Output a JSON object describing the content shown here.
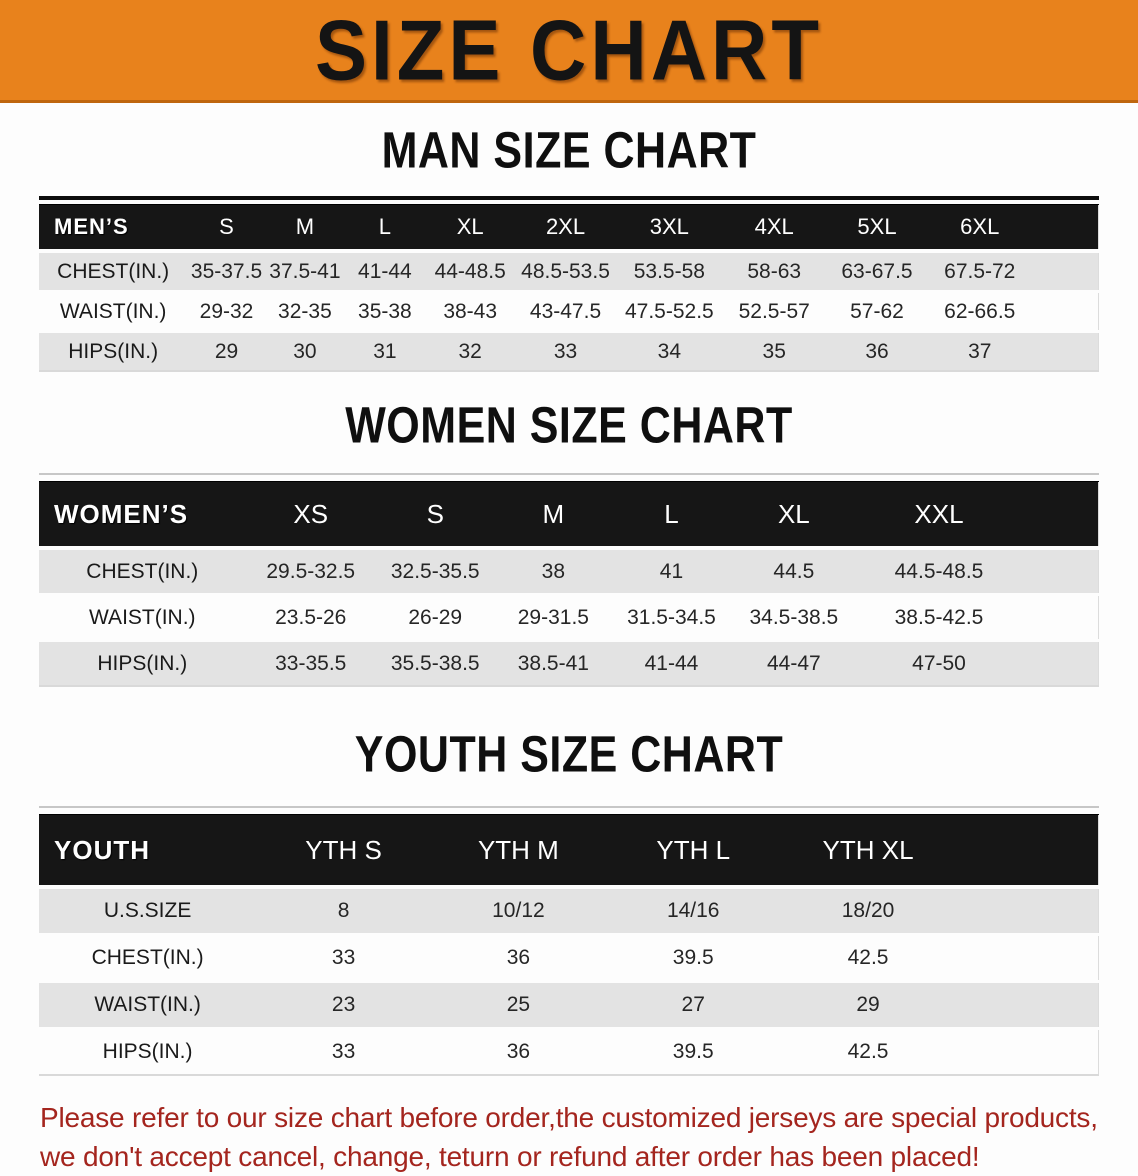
{
  "banner": {
    "title": "SIZE CHART",
    "background_color": "#E8821C"
  },
  "sections": [
    {
      "title": "MAN SIZE CHART",
      "header_label": "MEN’S",
      "columns": [
        "S",
        "M",
        "L",
        "XL",
        "2XL",
        "3XL",
        "4XL",
        "5XL",
        "6XL"
      ],
      "rows": [
        {
          "label": "CHEST(IN.)",
          "values": [
            "35-37.5",
            "37.5-41",
            "41-44",
            "44-48.5",
            "48.5-53.5",
            "53.5-58",
            "58-63",
            "63-67.5",
            "67.5-72"
          ]
        },
        {
          "label": "WAIST(IN.)",
          "values": [
            "29-32",
            "32-35",
            "35-38",
            "38-43",
            "43-47.5",
            "47.5-52.5",
            "52.5-57",
            "57-62",
            "62-66.5"
          ]
        },
        {
          "label": "HIPS(IN.)",
          "values": [
            "29",
            "30",
            "31",
            "32",
            "33",
            "34",
            "35",
            "36",
            "37"
          ]
        }
      ]
    },
    {
      "title": "WOMEN SIZE CHART",
      "header_label": "WOMEN’S",
      "columns": [
        "XS",
        "S",
        "M",
        "L",
        "XL",
        "XXL"
      ],
      "rows": [
        {
          "label": "CHEST(IN.)",
          "values": [
            "29.5-32.5",
            "32.5-35.5",
            "38",
            "41",
            "44.5",
            "44.5-48.5"
          ]
        },
        {
          "label": "WAIST(IN.)",
          "values": [
            "23.5-26",
            "26-29",
            "29-31.5",
            "31.5-34.5",
            "34.5-38.5",
            "38.5-42.5"
          ]
        },
        {
          "label": "HIPS(IN.)",
          "values": [
            "33-35.5",
            "35.5-38.5",
            "38.5-41",
            "41-44",
            "44-47",
            "47-50"
          ]
        }
      ]
    },
    {
      "title": "YOUTH SIZE CHART",
      "header_label": "YOUTH",
      "columns": [
        "YTH S",
        "YTH M",
        "YTH L",
        "YTH XL"
      ],
      "rows": [
        {
          "label": "U.S.SIZE",
          "values": [
            "8",
            "10/12",
            "14/16",
            "18/20"
          ]
        },
        {
          "label": "CHEST(IN.)",
          "values": [
            "33",
            "36",
            "39.5",
            "42.5"
          ]
        },
        {
          "label": "WAIST(IN.)",
          "values": [
            "23",
            "25",
            "27",
            "29"
          ]
        },
        {
          "label": "HIPS(IN.)",
          "values": [
            "33",
            "36",
            "39.5",
            "42.5"
          ]
        }
      ]
    }
  ],
  "disclaimer": {
    "line1": "Please refer to our size chart before order,the customized jerseys are special products,",
    "line2": "we don't accept cancel, change, teturn or refund after order has been placed!",
    "text_color": "#A4251E"
  }
}
